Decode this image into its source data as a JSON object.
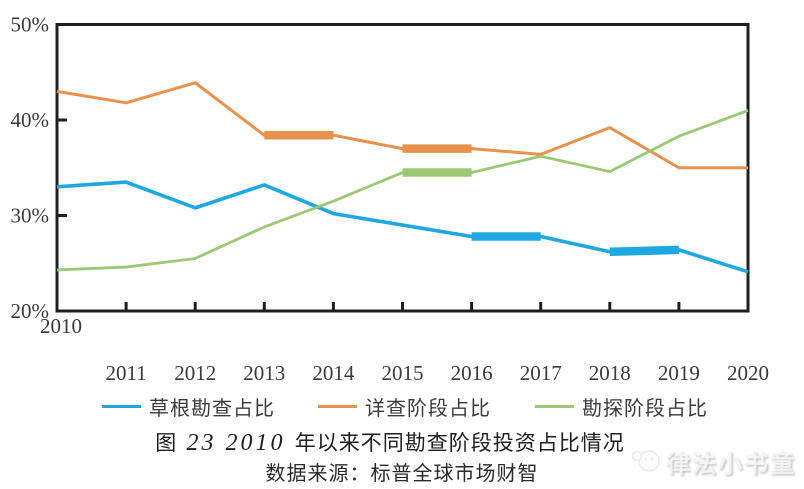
{
  "chart_data": {
    "type": "line",
    "title": "图 23 2010 年以来不同勘查阶段投资占比情况",
    "xlabel": "",
    "ylabel": "",
    "x": [
      2010,
      2011,
      2012,
      2013,
      2014,
      2015,
      2016,
      2017,
      2018,
      2019,
      2020
    ],
    "series": [
      {
        "name": "草根勘查占比",
        "color": "#1FA8E0",
        "values": [
          33.0,
          33.5,
          30.8,
          33.2,
          30.2,
          29.0,
          27.8,
          27.8,
          26.2,
          26.4,
          24.1
        ]
      },
      {
        "name": "详查阶段占比",
        "color": "#E8914C",
        "values": [
          43.0,
          41.8,
          43.9,
          38.4,
          38.4,
          37.0,
          37.0,
          36.4,
          39.2,
          35.0,
          35.0
        ]
      },
      {
        "name": "勘探阶段占比",
        "color": "#9CC876",
        "values": [
          24.3,
          24.6,
          25.5,
          28.8,
          31.5,
          34.5,
          34.5,
          36.2,
          34.6,
          38.3,
          41.0
        ]
      }
    ],
    "ylim": [
      20,
      50
    ],
    "yticks": [
      {
        "value": 50,
        "label": "50%"
      },
      {
        "value": 40,
        "label": "40%"
      },
      {
        "value": 30,
        "label": "30%"
      },
      {
        "value": 20,
        "label": "20%"
      }
    ],
    "highlight_segments": [
      {
        "series": 1,
        "from": 2013,
        "to": 2014
      },
      {
        "series": 1,
        "from": 2015,
        "to": 2016
      },
      {
        "series": 2,
        "from": 2015,
        "to": 2016
      },
      {
        "series": 0,
        "from": 2016,
        "to": 2017
      },
      {
        "series": 0,
        "from": 2018,
        "to": 2019
      }
    ],
    "grid": false,
    "legend_position": "bottom",
    "axis_color": "#1f1f1f",
    "label_color": "#3a3a3a"
  },
  "caption": {
    "title_prefix": "图 ",
    "title_numbers": "23 2010",
    "title_suffix": " 年以来不同勘查阶段投资占比情况",
    "source": "数据来源：标普全球市场财智"
  },
  "watermark": {
    "text": "律法小书童"
  }
}
